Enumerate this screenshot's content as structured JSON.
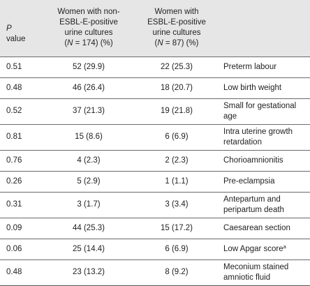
{
  "header": {
    "p_label_italic": "P",
    "p_label_rest": "value",
    "col_non_esbl_line1": "Women with non-",
    "col_non_esbl_line2": "ESBL-E-positive",
    "col_non_esbl_line3": "urine cultures",
    "col_non_esbl_n_open": "(",
    "col_non_esbl_n_italic": "N",
    "col_non_esbl_n_rest": " = 174)  (%)",
    "col_esbl_line1": "Women with",
    "col_esbl_line2": "ESBL-E-positive",
    "col_esbl_line3": "urine cultures",
    "col_esbl_n_open": "(",
    "col_esbl_n_italic": "N",
    "col_esbl_n_rest": " = 87)  (%)"
  },
  "rows": [
    {
      "p": "0.51",
      "non_esbl": "52 (29.9)",
      "esbl": "22 (25.3)",
      "outcome": "Preterm labour",
      "outcome2": "",
      "sup": ""
    },
    {
      "p": "0.48",
      "non_esbl": "46 (26.4)",
      "esbl": "18 (20.7)",
      "outcome": "Low birth weight",
      "outcome2": "",
      "sup": ""
    },
    {
      "p": "0.52",
      "non_esbl": "37 (21.3)",
      "esbl": "19 (21.8)",
      "outcome": "Small for gestational",
      "outcome2": "age",
      "sup": ""
    },
    {
      "p": "0.81",
      "non_esbl": "15 (8.6)",
      "esbl": "6 (6.9)",
      "outcome": "Intra uterine growth",
      "outcome2": "retardation",
      "sup": ""
    },
    {
      "p": "0.76",
      "non_esbl": "4 (2.3)",
      "esbl": "2 (2.3)",
      "outcome": "Chorioamnionitis",
      "outcome2": "",
      "sup": ""
    },
    {
      "p": "0.26",
      "non_esbl": "5 (2.9)",
      "esbl": "1 (1.1)",
      "outcome": "Pre-eclampsia",
      "outcome2": "",
      "sup": ""
    },
    {
      "p": "0.31",
      "non_esbl": "3 (1.7)",
      "esbl": "3 (3.4)",
      "outcome": "Antepartum and",
      "outcome2": "peripartum death",
      "sup": ""
    },
    {
      "p": "0.09",
      "non_esbl": "44 (25.3)",
      "esbl": "15 (17.2)",
      "outcome": "Caesarean section",
      "outcome2": "",
      "sup": ""
    },
    {
      "p": "0.06",
      "non_esbl": "25 (14.4)",
      "esbl": "6 (6.9)",
      "outcome": "Low Apgar score",
      "outcome2": "",
      "sup": "a"
    },
    {
      "p": "0.48",
      "non_esbl": "23 (13.2)",
      "esbl": "8 (9.2)",
      "outcome": "Meconium stained",
      "outcome2": "amniotic fluid",
      "sup": ""
    }
  ]
}
